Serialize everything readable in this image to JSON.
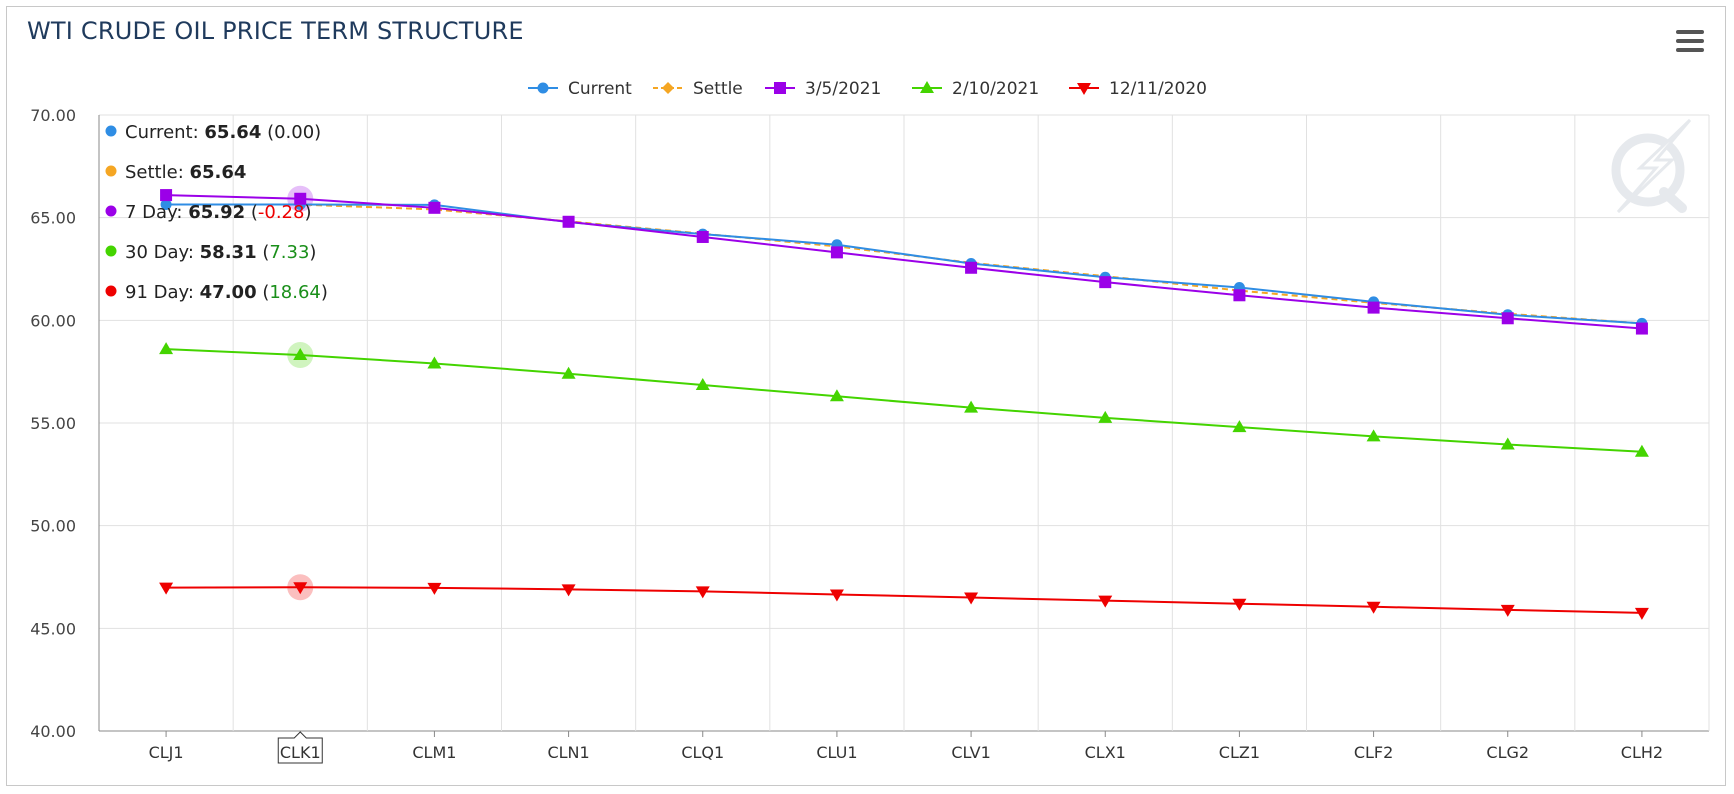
{
  "title": "WTI CRUDE OIL PRICE TERM STRUCTURE",
  "menu_icon": "hamburger-menu-icon",
  "watermark_icon": "lightning-q-logo-icon",
  "colors": {
    "current": "#2f8de4",
    "settle": "#f5a623",
    "day7": "#9b00e8",
    "day30": "#44d400",
    "day91": "#ee0000",
    "grid": "#e1e1e1",
    "title": "#1f3a5c",
    "positive": "#1a8f1a",
    "negative": "#ee0000"
  },
  "tooltip": {
    "rows": [
      {
        "label": "Current",
        "value": "65.64",
        "change": "0.00",
        "color_key": "current",
        "change_sign": "neutral"
      },
      {
        "label": "Settle",
        "value": "65.64",
        "change": "",
        "color_key": "settle",
        "change_sign": "neutral"
      },
      {
        "label": "7 Day",
        "value": "65.92",
        "change": "-0.28",
        "color_key": "day7",
        "change_sign": "negative"
      },
      {
        "label": "30 Day",
        "value": "58.31",
        "change": "7.33",
        "color_key": "day30",
        "change_sign": "positive"
      },
      {
        "label": "91 Day",
        "value": "47.00",
        "change": "18.64",
        "color_key": "day91",
        "change_sign": "positive"
      }
    ]
  },
  "chart_data": {
    "type": "line",
    "title": "WTI CRUDE OIL PRICE TERM STRUCTURE",
    "categories": [
      "CLJ1",
      "CLK1",
      "CLM1",
      "CLN1",
      "CLQ1",
      "CLU1",
      "CLV1",
      "CLX1",
      "CLZ1",
      "CLF2",
      "CLG2",
      "CLH2"
    ],
    "highlighted_category": "CLK1",
    "ylim": [
      40,
      70
    ],
    "yticks": [
      "40.00",
      "45.00",
      "50.00",
      "55.00",
      "60.00",
      "65.00",
      "70.00"
    ],
    "grid": true,
    "legend_position": "top-center",
    "series": [
      {
        "name": "Current",
        "key": "current",
        "marker": "circle",
        "dashed": false,
        "values": [
          65.64,
          65.64,
          65.62,
          64.78,
          64.2,
          63.68,
          62.77,
          62.1,
          61.6,
          60.9,
          60.27,
          59.85
        ]
      },
      {
        "name": "Settle",
        "key": "settle",
        "marker": "diamond",
        "dashed": true,
        "values": [
          65.64,
          65.64,
          65.4,
          64.82,
          64.22,
          63.6,
          62.8,
          62.15,
          61.45,
          60.85,
          60.32,
          59.85
        ]
      },
      {
        "name": "3/5/2021",
        "key": "day7",
        "marker": "square",
        "dashed": false,
        "values": [
          66.1,
          65.92,
          65.48,
          64.8,
          64.06,
          63.31,
          62.56,
          61.86,
          61.22,
          60.62,
          60.1,
          59.6
        ]
      },
      {
        "name": "2/10/2021",
        "key": "day30",
        "marker": "triangle",
        "dashed": false,
        "values": [
          58.6,
          58.31,
          57.9,
          57.4,
          56.85,
          56.3,
          55.75,
          55.25,
          54.8,
          54.35,
          53.95,
          53.6
        ]
      },
      {
        "name": "12/11/2020",
        "key": "day91",
        "marker": "triangle-down",
        "dashed": false,
        "values": [
          46.98,
          47.0,
          46.97,
          46.9,
          46.8,
          46.65,
          46.5,
          46.35,
          46.2,
          46.05,
          45.9,
          45.75
        ]
      }
    ]
  }
}
